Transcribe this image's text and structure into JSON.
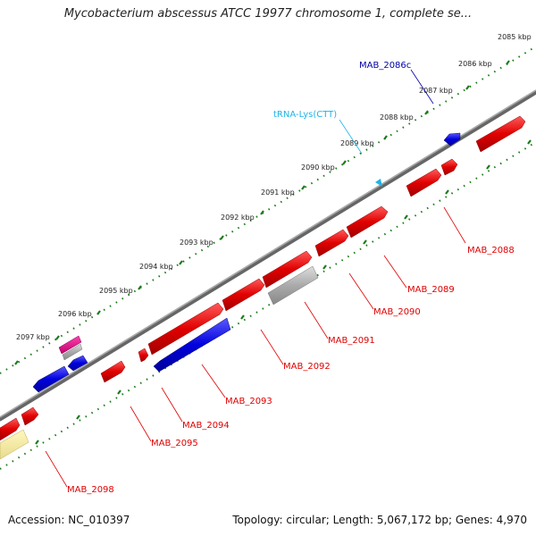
{
  "title": "Mycobacterium abscessus ATCC 19977 chromosome 1, complete se...",
  "scale_labels": [
    "2085 kbp",
    "2086 kbp",
    "2087 kbp",
    "2088 kbp",
    "2089 kbp",
    "2090 kbp",
    "2091 kbp",
    "2092 kbp",
    "2093 kbp",
    "2094 kbp",
    "2095 kbp",
    "2096 kbp",
    "2097 kbp"
  ],
  "gene_labels": {
    "mab_2086c": "MAB_2086c",
    "trna_lys": "tRNA-Lys(CTT)",
    "mab_2088": "MAB_2088",
    "mab_2089": "MAB_2089",
    "mab_2090": "MAB_2090",
    "mab_2091": "MAB_2091",
    "mab_2092": "MAB_2092",
    "mab_2093": "MAB_2093",
    "mab_2094": "MAB_2094",
    "mab_2095": "MAB_2095",
    "mab_2098": "MAB_2098"
  },
  "footer": {
    "accession": "Accession: NC_010397",
    "stats": "Topology: circular; Length: 5,067,172 bp; Genes: 4,970"
  },
  "colors": {
    "cds_forward": "#e00000",
    "cds_reverse": "#0000dd",
    "pseudo": "#aaaaaa",
    "trna": "#1eb4e6",
    "rrna_like": "#e0108c",
    "misc_feature": "#f0e68c",
    "backbone": "#777777",
    "ticks": "#1a7a1a"
  }
}
